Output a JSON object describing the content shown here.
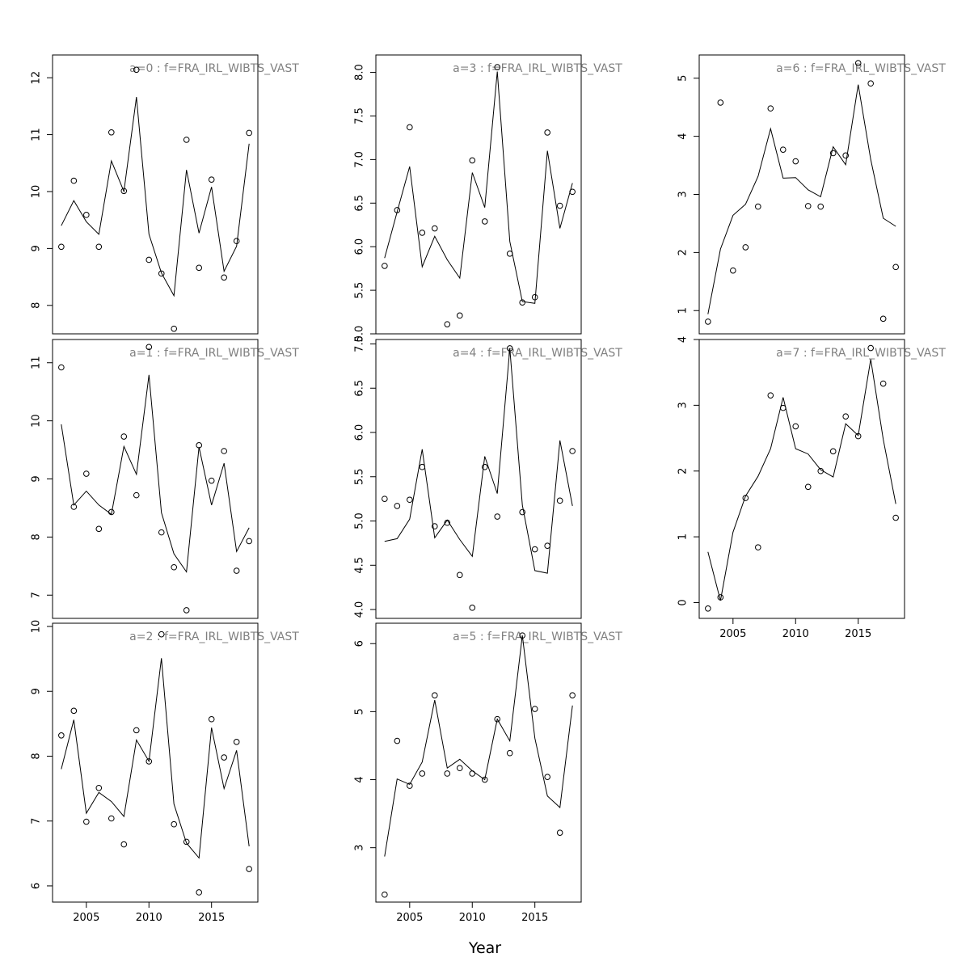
{
  "chart_data": {
    "type": "line",
    "xlabel": "Year",
    "x": [
      2003,
      2004,
      2005,
      2006,
      2007,
      2008,
      2009,
      2010,
      2011,
      2012,
      2013,
      2014,
      2015,
      2016,
      2017,
      2018
    ],
    "x_ticks": [
      2005,
      2010,
      2015
    ],
    "panels": [
      {
        "title": "a=0 : f=FRA_IRL_WIBTS_VAST",
        "y_ticks": [
          8,
          9,
          10,
          11,
          12
        ],
        "ylim": [
          7.5,
          12.4
        ],
        "series": [
          {
            "kind": "points",
            "values": [
              9.03,
              10.19,
              9.59,
              9.03,
              11.04,
              10.01,
              12.14,
              8.8,
              8.56,
              7.59,
              10.91,
              8.66,
              10.21,
              8.49,
              9.13,
              11.03
            ]
          },
          {
            "kind": "line",
            "values": [
              9.4,
              9.84,
              9.47,
              9.25,
              10.54,
              10.0,
              11.66,
              9.25,
              8.57,
              8.17,
              10.38,
              9.27,
              10.08,
              8.6,
              9.04,
              10.84
            ]
          }
        ]
      },
      {
        "title": "a=1 : f=FRA_IRL_WIBTS_VAST",
        "y_ticks": [
          7,
          8,
          9,
          10,
          11
        ],
        "ylim": [
          6.6,
          11.4
        ],
        "series": [
          {
            "kind": "points",
            "values": [
              10.92,
              8.52,
              9.09,
              8.14,
              8.43,
              9.73,
              8.72,
              11.27,
              8.08,
              7.48,
              6.74,
              9.58,
              8.97,
              9.48,
              7.42,
              7.93
            ]
          },
          {
            "kind": "line",
            "values": [
              9.94,
              8.55,
              8.79,
              8.55,
              8.39,
              9.56,
              9.08,
              10.79,
              8.42,
              7.71,
              7.4,
              9.55,
              8.55,
              9.27,
              7.75,
              8.16
            ]
          }
        ]
      },
      {
        "title": "a=2 : f=FRA_IRL_WIBTS_VAST",
        "y_ticks": [
          6,
          7,
          8,
          9,
          10
        ],
        "ylim": [
          5.75,
          10.05
        ],
        "series": [
          {
            "kind": "points",
            "values": [
              8.32,
              8.7,
              6.99,
              7.51,
              7.04,
              6.64,
              8.4,
              7.92,
              9.88,
              6.95,
              6.68,
              5.9,
              8.57,
              7.98,
              8.22,
              6.26
            ]
          },
          {
            "kind": "line",
            "values": [
              7.8,
              8.56,
              7.12,
              7.44,
              7.3,
              7.07,
              8.25,
              7.92,
              9.51,
              7.26,
              6.66,
              6.43,
              8.44,
              7.5,
              8.09,
              6.61
            ]
          }
        ]
      },
      {
        "title": "a=3 : f=FRA_IRL_WIBTS_VAST",
        "y_ticks": [
          5.0,
          5.5,
          6.0,
          6.5,
          7.0,
          7.5,
          8.0
        ],
        "ylim": [
          5.0,
          8.2
        ],
        "series": [
          {
            "kind": "points",
            "values": [
              5.78,
              6.42,
              7.37,
              6.16,
              6.21,
              5.11,
              5.21,
              6.99,
              6.29,
              8.06,
              5.92,
              5.36,
              5.42,
              7.31,
              6.47,
              6.63
            ]
          },
          {
            "kind": "line",
            "values": [
              5.87,
              6.4,
              6.92,
              5.77,
              6.12,
              5.85,
              5.64,
              6.85,
              6.45,
              8.01,
              6.06,
              5.37,
              5.35,
              7.1,
              6.21,
              6.73
            ]
          }
        ]
      },
      {
        "title": "a=4 : f=FRA_IRL_WIBTS_VAST",
        "y_ticks": [
          4.0,
          4.5,
          5.0,
          5.5,
          6.0,
          6.5,
          7.0
        ],
        "ylim": [
          3.9,
          7.05
        ],
        "series": [
          {
            "kind": "points",
            "values": [
              5.25,
              5.17,
              5.24,
              5.61,
              4.94,
              4.98,
              4.39,
              4.02,
              5.61,
              5.05,
              6.95,
              5.1,
              4.68,
              4.72,
              5.23,
              5.79
            ]
          },
          {
            "kind": "line",
            "values": [
              4.77,
              4.8,
              5.02,
              5.81,
              4.81,
              5.01,
              4.79,
              4.6,
              5.73,
              5.31,
              6.95,
              5.18,
              4.44,
              4.41,
              5.91,
              5.17
            ]
          }
        ]
      },
      {
        "title": "a=5 : f=FRA_IRL_WIBTS_VAST",
        "y_ticks": [
          3,
          4,
          5,
          6
        ],
        "ylim": [
          2.2,
          6.3
        ],
        "series": [
          {
            "kind": "points",
            "values": [
              2.31,
              4.57,
              3.91,
              4.09,
              5.24,
              4.09,
              4.17,
              4.09,
              4.0,
              4.89,
              4.39,
              6.12,
              5.04,
              4.04,
              3.22,
              5.24
            ]
          },
          {
            "kind": "line",
            "values": [
              2.87,
              4.01,
              3.93,
              4.26,
              5.17,
              4.17,
              4.3,
              4.13,
              4.0,
              4.89,
              4.57,
              6.12,
              4.61,
              3.76,
              3.59,
              5.09
            ]
          }
        ]
      },
      {
        "title": "a=6 : f=FRA_IRL_WIBTS_VAST",
        "y_ticks": [
          1,
          2,
          3,
          4,
          5
        ],
        "ylim": [
          0.6,
          5.4
        ],
        "series": [
          {
            "kind": "points",
            "values": [
              0.81,
              4.58,
              1.69,
              2.09,
              2.79,
              4.48,
              3.77,
              3.57,
              2.8,
              2.79,
              3.71,
              3.67,
              5.26,
              4.91,
              0.86,
              1.75
            ]
          },
          {
            "kind": "line",
            "values": [
              0.94,
              2.06,
              2.64,
              2.83,
              3.31,
              4.13,
              3.28,
              3.29,
              3.08,
              2.96,
              3.82,
              3.51,
              4.89,
              3.6,
              2.59,
              2.45
            ]
          }
        ]
      },
      {
        "title": "a=7 : f=FRA_IRL_WIBTS_VAST",
        "y_ticks": [
          0,
          1,
          2,
          3,
          4
        ],
        "ylim": [
          -0.24,
          4.0
        ],
        "series": [
          {
            "kind": "points",
            "values": [
              -0.09,
              0.08,
              null,
              1.59,
              0.84,
              3.15,
              2.96,
              2.68,
              1.76,
              2.0,
              2.3,
              2.83,
              2.53,
              3.87,
              3.33,
              1.29
            ]
          },
          {
            "kind": "line",
            "values": [
              0.77,
              0.03,
              1.07,
              1.62,
              1.92,
              2.34,
              3.12,
              2.34,
              2.26,
              2.02,
              1.91,
              2.72,
              2.54,
              3.7,
              2.48,
              1.5
            ]
          }
        ]
      }
    ]
  }
}
